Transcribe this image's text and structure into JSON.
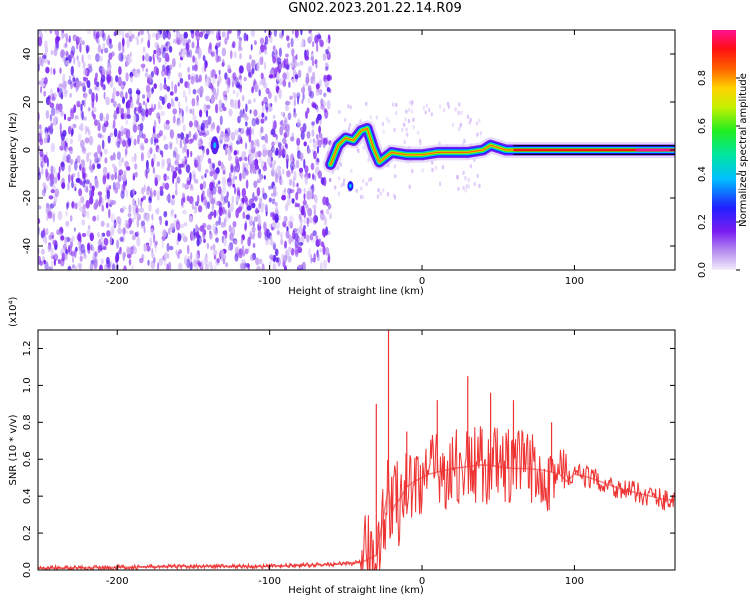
{
  "title": "GN02.2023.201.22.14.R09",
  "chart_data": [
    {
      "type": "heatmap",
      "xlabel": "Height of straight line (km)",
      "ylabel": "Frequency (Hz)",
      "xlim": [
        -252,
        166
      ],
      "ylim": [
        -50,
        50
      ],
      "xticks": [
        "-200",
        "-100",
        "0",
        "100"
      ],
      "yticks": [
        "-40",
        "-20",
        "0",
        "20",
        "40"
      ],
      "ridge": {
        "x": [
          -60,
          -55,
          -50,
          -45,
          -40,
          -36,
          -32,
          -28,
          -24,
          -20,
          -10,
          0,
          10,
          20,
          30,
          40,
          45,
          55,
          70,
          90,
          110,
          130,
          150,
          166
        ],
        "y": [
          -6,
          2,
          5,
          4,
          8,
          9,
          1,
          -5,
          -3,
          -1,
          -2,
          -2,
          -1,
          -1,
          -1,
          0,
          2,
          0,
          0,
          0,
          0,
          0,
          0,
          0
        ]
      },
      "colorbar": {
        "label": "Normalized spectral amplitude",
        "range": [
          0,
          1
        ],
        "ticks": [
          "0.0",
          "0.2",
          "0.4",
          "0.6",
          "0.8"
        ]
      }
    },
    {
      "type": "line",
      "xlabel": "Height of straight line (km)",
      "ylabel": "SNR (10 * v/v)",
      "scale_label": "(x10⁴)",
      "xlim": [
        -252,
        166
      ],
      "ylim": [
        0,
        1.3
      ],
      "xticks": [
        "-200",
        "-100",
        "0",
        "100"
      ],
      "yticks": [
        "0.0",
        "0.2",
        "0.4",
        "0.6",
        "0.8",
        "1.0",
        "1.2"
      ],
      "series": [
        {
          "color": "#ee3333",
          "x": [
            -252,
            -200,
            -150,
            -100,
            -60,
            -40,
            -30,
            -25,
            -22,
            -20,
            -18,
            -15,
            -10,
            -5,
            0,
            5,
            10,
            20,
            30,
            40,
            50,
            60,
            70,
            80,
            90,
            95,
            100,
            110,
            120,
            130,
            140,
            150,
            160,
            166
          ],
          "y": [
            0.01,
            0.015,
            0.02,
            0.02,
            0.03,
            0.04,
            0.08,
            0.3,
            0.45,
            0.3,
            0.35,
            0.38,
            0.45,
            0.48,
            0.5,
            0.52,
            0.53,
            0.55,
            0.56,
            0.57,
            0.56,
            0.55,
            0.55,
            0.54,
            0.52,
            0.48,
            0.52,
            0.5,
            0.47,
            0.44,
            0.42,
            0.4,
            0.38,
            0.38
          ],
          "peaks": {
            "x": [
              -22,
              -30,
              -10,
              10,
              30,
              45,
              60,
              85
            ],
            "y": [
              1.3,
              0.9,
              0.75,
              0.92,
              1.05,
              0.96,
              0.92,
              0.8
            ]
          }
        }
      ]
    }
  ]
}
